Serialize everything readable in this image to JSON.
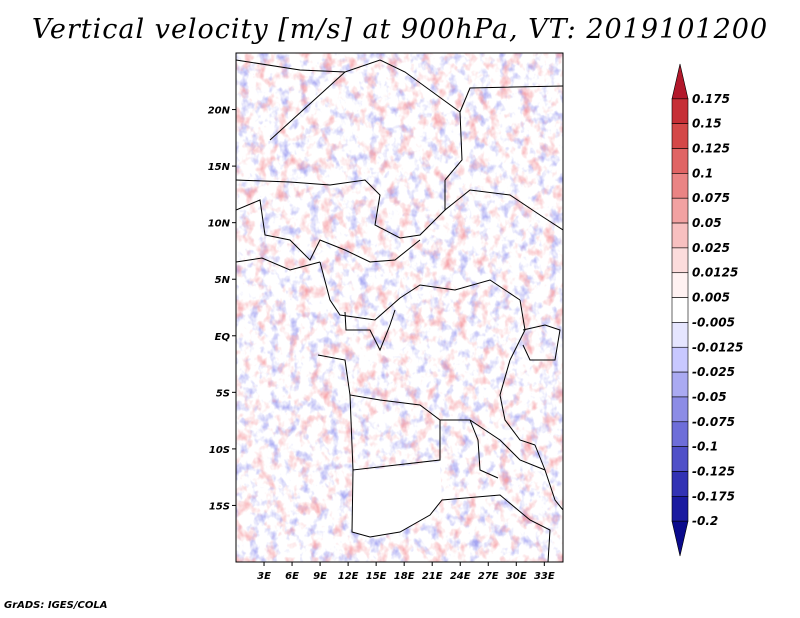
{
  "title": "Vertical velocity [m/s] at 900hPa, VT: 2019101200",
  "credit": "GrADS: IGES/COLA",
  "map": {
    "lat_labels": [
      "20N",
      "15N",
      "10N",
      "5N",
      "EQ",
      "5S",
      "10S",
      "15S"
    ],
    "lat_values": [
      20,
      15,
      10,
      5,
      0,
      -5,
      -10,
      -15
    ],
    "lon_labels": [
      "3E",
      "6E",
      "9E",
      "12E",
      "15E",
      "18E",
      "21E",
      "24E",
      "27E",
      "30E",
      "33E"
    ],
    "lon_values": [
      3,
      6,
      9,
      12,
      15,
      18,
      21,
      24,
      27,
      30,
      33
    ],
    "lon_range": [
      0,
      35
    ],
    "lat_range": [
      -20,
      25
    ]
  },
  "colorbar": {
    "labels": [
      "0.175",
      "0.15",
      "0.125",
      "0.1",
      "0.075",
      "0.05",
      "0.025",
      "0.0125",
      "0.005",
      "-0.005",
      "-0.0125",
      "-0.025",
      "-0.05",
      "-0.075",
      "-0.1",
      "-0.125",
      "-0.175",
      "-0.2"
    ],
    "colors": [
      "#b2182b",
      "#c62f36",
      "#d44848",
      "#e06464",
      "#ea8484",
      "#f2a2a2",
      "#f8c0c0",
      "#fcdcdc",
      "#fff2f2",
      "#ffffff",
      "#e6e6ff",
      "#c8c8ff",
      "#aaaaf2",
      "#8c8ce6",
      "#6e6ed9",
      "#5050c8",
      "#3232b4",
      "#1a1aa0",
      "#0a0a8c"
    ]
  }
}
